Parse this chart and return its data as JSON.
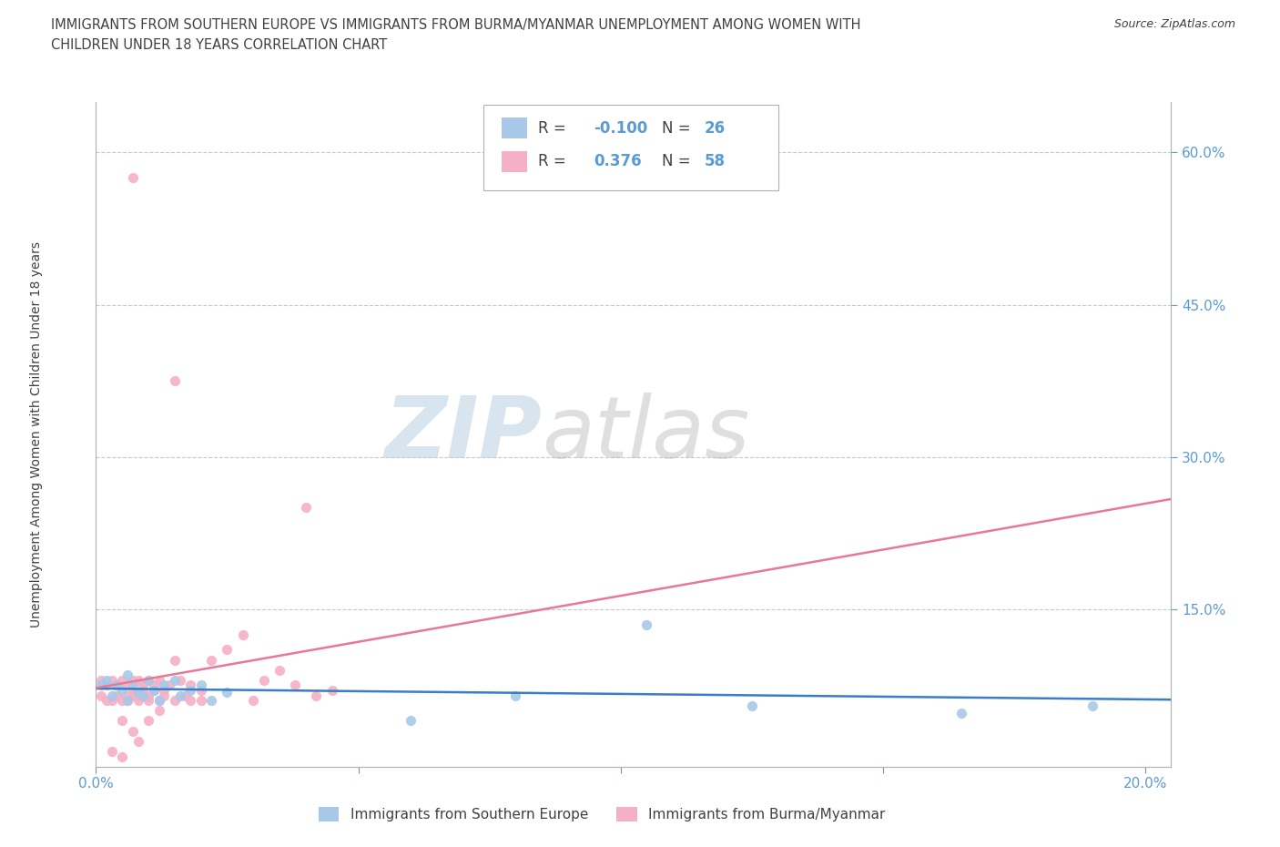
{
  "title_line1": "IMMIGRANTS FROM SOUTHERN EUROPE VS IMMIGRANTS FROM BURMA/MYANMAR UNEMPLOYMENT AMONG WOMEN WITH",
  "title_line2": "CHILDREN UNDER 18 YEARS CORRELATION CHART",
  "source": "Source: ZipAtlas.com",
  "ylabel": "Unemployment Among Women with Children Under 18 years",
  "xlim": [
    0.0,
    0.205
  ],
  "ylim": [
    -0.005,
    0.65
  ],
  "ytick_vals": [
    0.15,
    0.3,
    0.45,
    0.6
  ],
  "ytick_labels": [
    "15.0%",
    "30.0%",
    "45.0%",
    "60.0%"
  ],
  "xtick_vals": [
    0.0,
    0.05,
    0.1,
    0.15,
    0.2
  ],
  "xtick_labels": [
    "0.0%",
    "",
    "",
    "",
    "20.0%"
  ],
  "watermark_zip": "ZIP",
  "watermark_atlas": "atlas",
  "legend1_R": "-0.100",
  "legend1_N": "26",
  "legend2_R": "0.376",
  "legend2_N": "58",
  "color_blue": "#a8c8e8",
  "color_pink": "#f4b0c4",
  "line_blue": "#3a7dc9",
  "line_pink": "#e87898",
  "tick_color": "#5b9bd5",
  "grid_color": "#c8c8c8",
  "axis_color": "#b0b0b0",
  "bg_color": "#ffffff",
  "text_color": "#404040",
  "blue_x": [
    0.001,
    0.002,
    0.003,
    0.004,
    0.005,
    0.006,
    0.006,
    0.007,
    0.008,
    0.009,
    0.01,
    0.011,
    0.012,
    0.013,
    0.015,
    0.016,
    0.018,
    0.02,
    0.022,
    0.025,
    0.06,
    0.08,
    0.105,
    0.125,
    0.165,
    0.19
  ],
  "blue_y": [
    0.075,
    0.08,
    0.065,
    0.075,
    0.07,
    0.085,
    0.06,
    0.075,
    0.068,
    0.065,
    0.08,
    0.07,
    0.06,
    0.075,
    0.08,
    0.065,
    0.07,
    0.075,
    0.06,
    0.068,
    0.04,
    0.065,
    0.135,
    0.055,
    0.048,
    0.055
  ],
  "pink_x": [
    0.001,
    0.001,
    0.002,
    0.002,
    0.003,
    0.003,
    0.003,
    0.004,
    0.004,
    0.005,
    0.005,
    0.005,
    0.006,
    0.006,
    0.006,
    0.007,
    0.007,
    0.007,
    0.007,
    0.008,
    0.008,
    0.008,
    0.009,
    0.009,
    0.01,
    0.01,
    0.01,
    0.011,
    0.011,
    0.012,
    0.012,
    0.013,
    0.013,
    0.014,
    0.015,
    0.015,
    0.016,
    0.017,
    0.018,
    0.02,
    0.022,
    0.025,
    0.028,
    0.03,
    0.032,
    0.035,
    0.038,
    0.04,
    0.042,
    0.045,
    0.005,
    0.007,
    0.008,
    0.01,
    0.012,
    0.015,
    0.018,
    0.02
  ],
  "pink_y": [
    0.065,
    0.08,
    0.06,
    0.075,
    0.06,
    0.08,
    0.01,
    0.065,
    0.075,
    0.06,
    0.08,
    0.005,
    0.065,
    0.075,
    0.06,
    0.08,
    0.065,
    0.07,
    0.575,
    0.06,
    0.08,
    0.065,
    0.07,
    0.075,
    0.06,
    0.08,
    0.065,
    0.07,
    0.075,
    0.06,
    0.08,
    0.065,
    0.07,
    0.075,
    0.06,
    0.375,
    0.08,
    0.065,
    0.075,
    0.06,
    0.1,
    0.11,
    0.125,
    0.06,
    0.08,
    0.09,
    0.075,
    0.25,
    0.065,
    0.07,
    0.04,
    0.03,
    0.02,
    0.04,
    0.05,
    0.1,
    0.06,
    0.07
  ]
}
